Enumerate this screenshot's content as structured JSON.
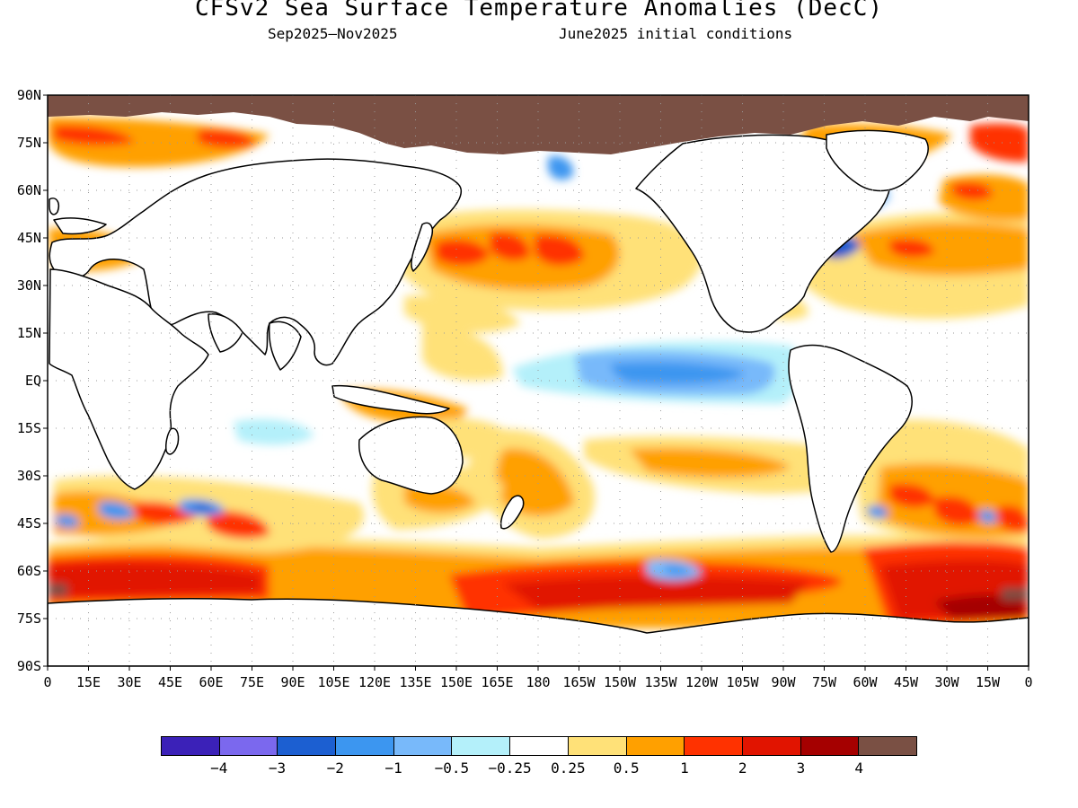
{
  "header": {
    "title": "CFSv2 Sea Surface Temperature Anomalies (DecC)",
    "period": "Sep2025–Nov2025",
    "init": "June2025 initial conditions"
  },
  "axes": {
    "lat_labels": [
      "90N",
      "75N",
      "60N",
      "45N",
      "30N",
      "15N",
      "EQ",
      "15S",
      "30S",
      "45S",
      "60S",
      "75S",
      "90S"
    ],
    "lon_labels": [
      "0",
      "15E",
      "30E",
      "45E",
      "60E",
      "75E",
      "90E",
      "105E",
      "120E",
      "135E",
      "150E",
      "165E",
      "180",
      "165W",
      "150W",
      "135W",
      "120W",
      "105W",
      "90W",
      "75W",
      "60W",
      "45W",
      "30W",
      "15W",
      "0"
    ],
    "grid": "dotted"
  },
  "legend": {
    "colors": [
      "#3b21b8",
      "#7b68ee",
      "#1c5fd1",
      "#3c96f0",
      "#78b9fa",
      "#b4f0fa",
      "#ffffff",
      "#ffe178",
      "#ffa000",
      "#ff3200",
      "#e11400",
      "#a50000",
      "#7a5044"
    ],
    "labels": [
      "−4",
      "−3",
      "−2",
      "−1",
      "−0.5",
      "−0.25",
      "0.25",
      "0.5",
      "1",
      "2",
      "3",
      "4"
    ]
  },
  "colors": {
    "land": "#ffffff",
    "ice_mask": "#7a5044",
    "frame": "#000000"
  }
}
